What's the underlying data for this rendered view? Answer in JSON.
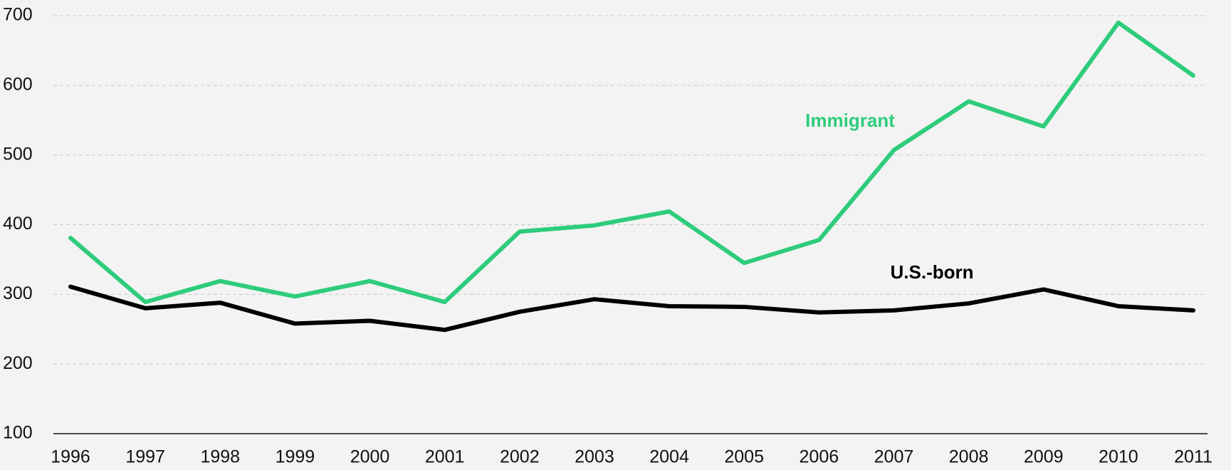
{
  "chart_data": {
    "type": "line",
    "categories": [
      "1996",
      "1997",
      "1998",
      "1999",
      "2000",
      "2001",
      "2002",
      "2003",
      "2004",
      "2005",
      "2006",
      "2007",
      "2008",
      "2009",
      "2010",
      "2011"
    ],
    "series": [
      {
        "name": "Immigrant",
        "color": "#2ecc7b",
        "values": [
          381,
          289,
          319,
          297,
          319,
          289,
          390,
          399,
          419,
          345,
          378,
          507,
          577,
          541,
          690,
          614
        ]
      },
      {
        "name": "U.S.-born",
        "color": "#000000",
        "values": [
          311,
          280,
          288,
          258,
          262,
          249,
          275,
          293,
          283,
          282,
          274,
          277,
          287,
          307,
          283,
          277
        ]
      }
    ],
    "ylim": [
      100,
      700
    ],
    "yticks": [
      100,
      200,
      300,
      400,
      500,
      600,
      700
    ],
    "grid": true
  }
}
